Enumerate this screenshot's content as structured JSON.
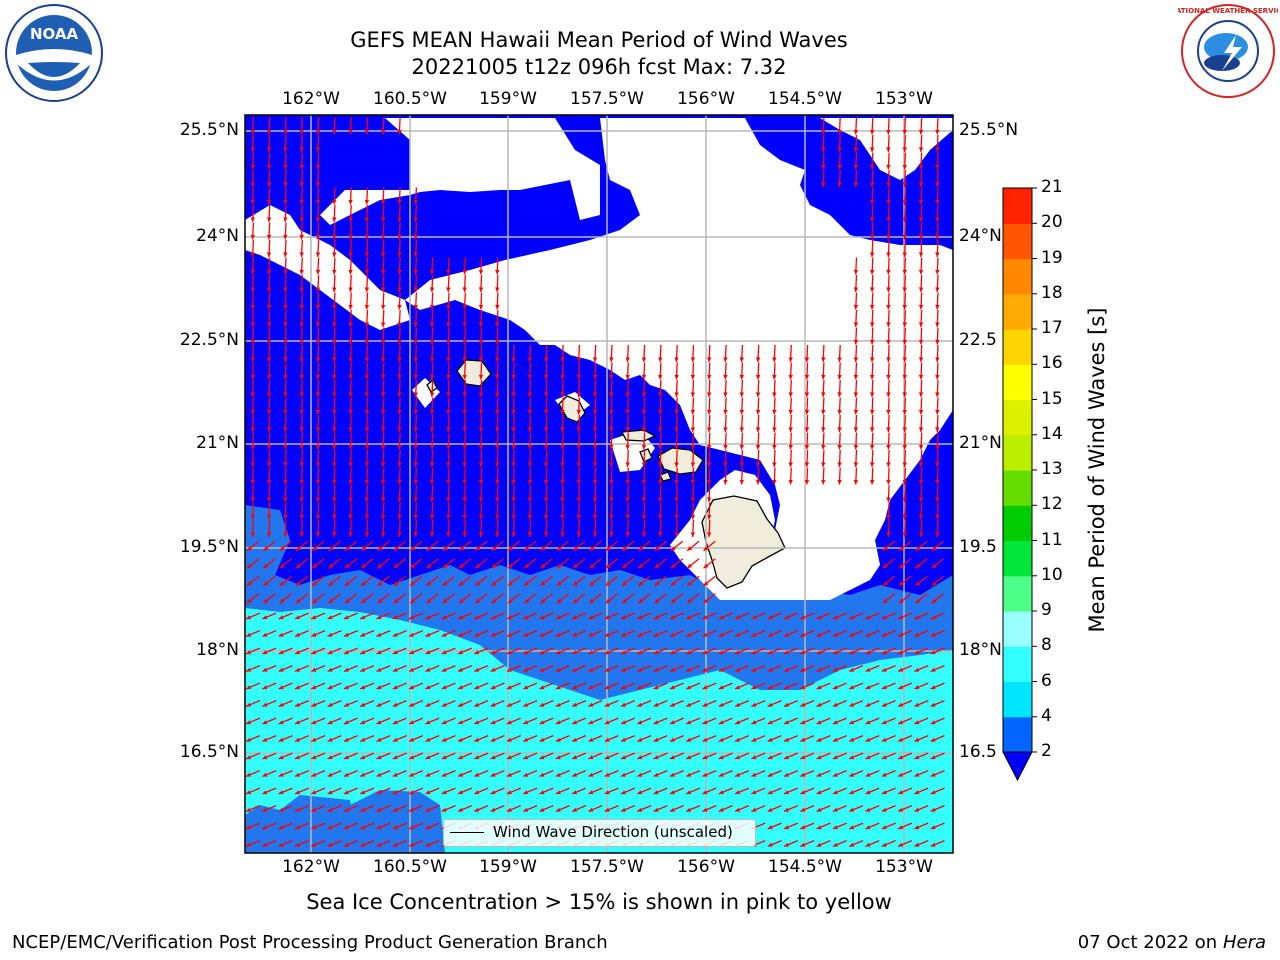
{
  "title": {
    "line1": "GEFS MEAN Hawaii Mean Period of Wind Waves",
    "line2": "20221005 t12z 096h fcst   Max: 7.32"
  },
  "axes": {
    "lon_labels": [
      "162°W",
      "160.5°W",
      "159°W",
      "157.5°W",
      "156°W",
      "154.5°W",
      "153°W"
    ],
    "lat_labels_left": [
      "25.5°N",
      "24°N",
      "22.5°N",
      "21°N",
      "19.5°N",
      "18°N",
      "16.5°N"
    ],
    "lat_labels_right": [
      "25.5°N",
      "24°N",
      "22.5",
      "21°N",
      "19.5",
      "18°N",
      "16.5"
    ]
  },
  "legend": {
    "label": "Wind Wave Direction (unscaled)"
  },
  "colorbar": {
    "label": "Mean Period of Wind Waves [s]",
    "ticks": [
      "2",
      "4",
      "6",
      "8",
      "9",
      "10",
      "11",
      "12",
      "13",
      "14",
      "15",
      "16",
      "17",
      "18",
      "19",
      "20",
      "21"
    ],
    "colors": [
      "#0066ff",
      "#00e5ff",
      "#33ffff",
      "#99ffff",
      "#4dff88",
      "#00e639",
      "#00cc00",
      "#66dd00",
      "#bbee00",
      "#ddf000",
      "#ffff00",
      "#ffd500",
      "#ffaa00",
      "#ff8800",
      "#ff5500",
      "#ff2200",
      "#ff0000"
    ],
    "under_color": "#0000ff"
  },
  "fields": {
    "period_colors": {
      "lt2": "#0000ff",
      "2to4": "#2277ee",
      "4to6": "#33ffff"
    },
    "arrow_color": "#ff0000",
    "land_color": "#f0eddc"
  },
  "footer": {
    "note": "Sea Ice Concentration > 15% is shown in pink to yellow",
    "left": "NCEP/EMC/Verification Post Processing Product Generation Branch",
    "date": "07 Oct 2022 on ",
    "machine": "Hera"
  },
  "logos": {
    "noaa": "NOAA",
    "nws": "NATIONAL WEATHER SERVICE"
  }
}
